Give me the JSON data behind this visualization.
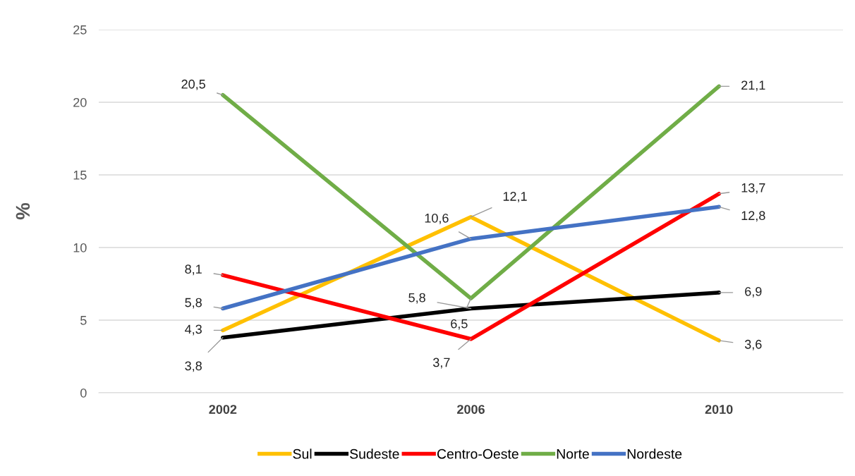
{
  "chart_data": {
    "type": "line",
    "ylabel": "%",
    "categories": [
      "2002",
      "2006",
      "2010"
    ],
    "ylim": [
      0,
      25
    ],
    "yticks": [
      0,
      5,
      10,
      15,
      20,
      25
    ],
    "grid": "y",
    "legend": "bottom",
    "marker": "none",
    "line_style": "solid",
    "series": [
      {
        "name": "Sul",
        "color": "#ffc000",
        "values": [
          4.3,
          12.1,
          3.6
        ],
        "value_labels": [
          "4,3",
          "12,1",
          "3,6"
        ]
      },
      {
        "name": "Sudeste",
        "color": "#000000",
        "values": [
          3.8,
          5.8,
          6.9
        ],
        "value_labels": [
          "3,8",
          "5,8",
          "6,9"
        ]
      },
      {
        "name": "Centro-Oeste",
        "color": "#ff0000",
        "values": [
          8.1,
          3.7,
          13.7
        ],
        "value_labels": [
          "8,1",
          "3,7",
          "13,7"
        ]
      },
      {
        "name": "Norte",
        "color": "#70ad47",
        "values": [
          20.5,
          6.5,
          21.1
        ],
        "value_labels": [
          "20,5",
          "6,5",
          "21,1"
        ]
      },
      {
        "name": "Nordeste",
        "color": "#4472c4",
        "values": [
          5.8,
          10.6,
          12.8
        ],
        "value_labels": [
          "5,8",
          "10,6",
          "12,8"
        ]
      }
    ]
  }
}
